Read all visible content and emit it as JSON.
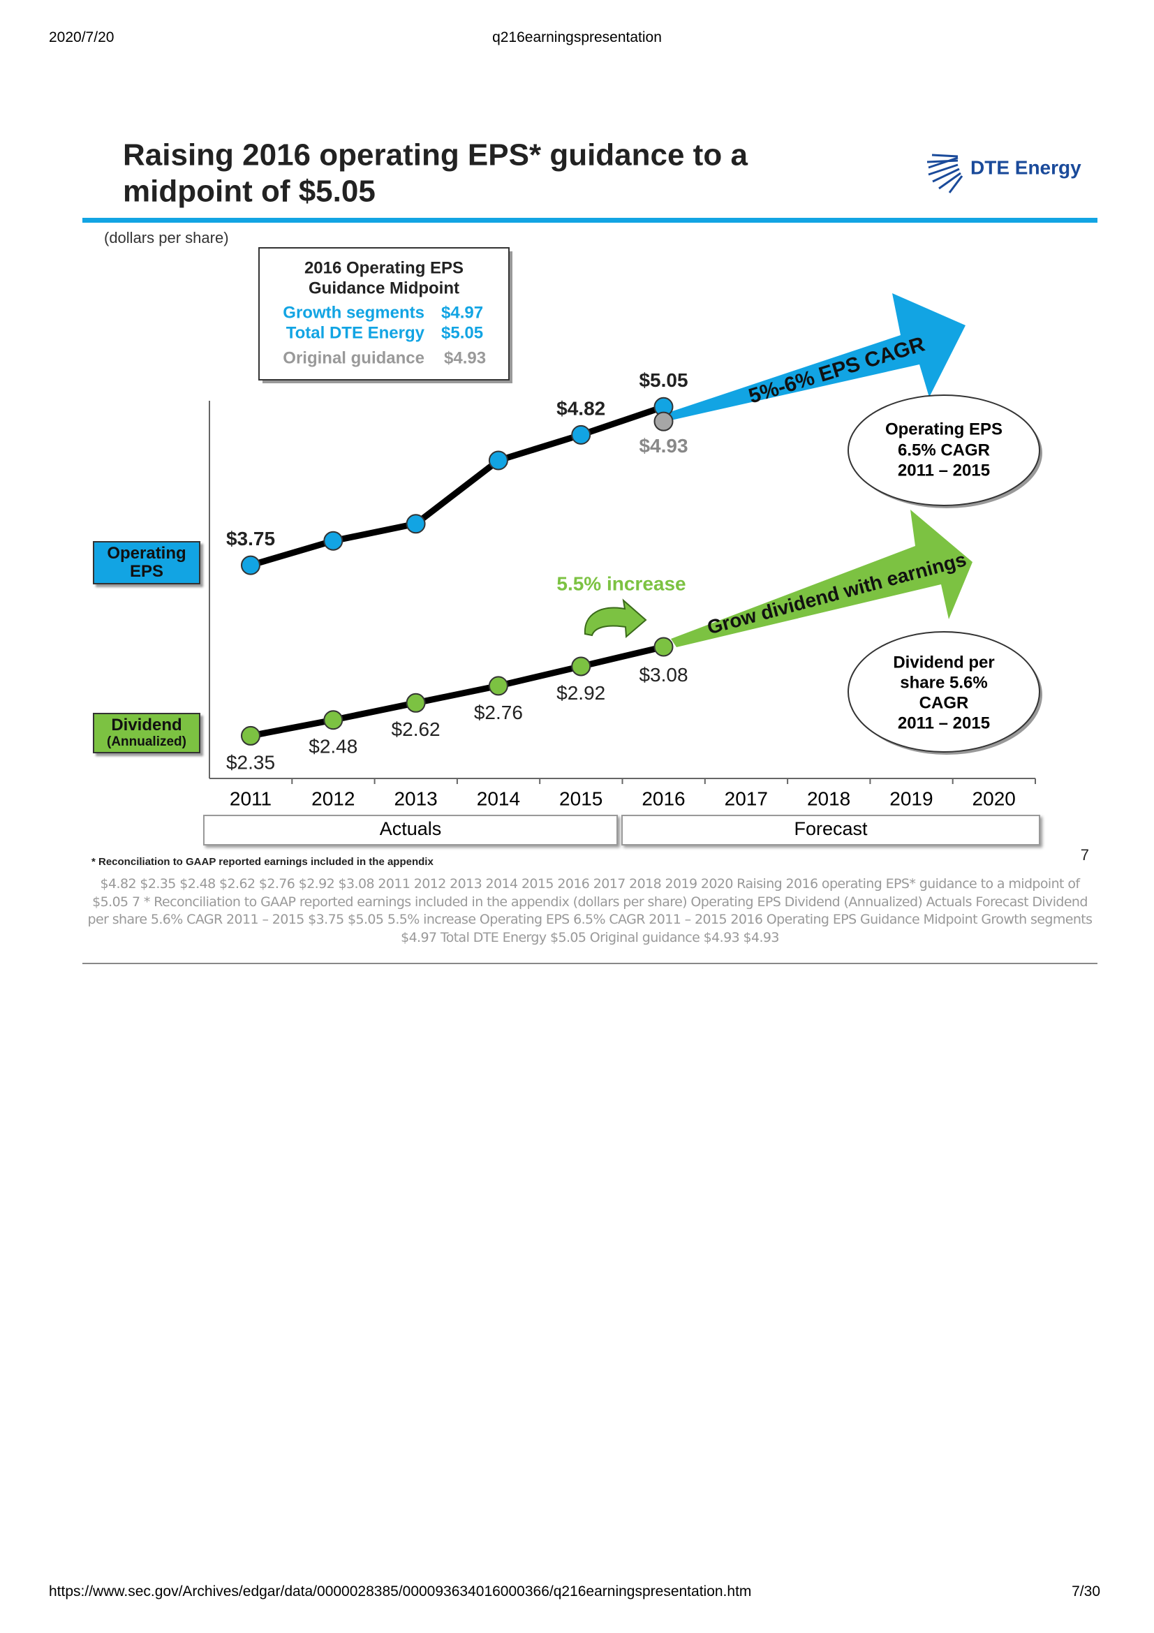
{
  "header": {
    "date": "2020/7/20",
    "title": "q216earningspresentation"
  },
  "slide": {
    "title_lines": [
      "Raising 2016 operating EPS* guidance to a",
      "midpoint of $5.05"
    ],
    "logo": "DTE Energy",
    "units": "(dollars per share)",
    "guidance_box": {
      "title_lines": [
        "2016 Operating EPS",
        "Guidance Midpoint"
      ],
      "rows": [
        [
          "Growth segments",
          "$4.97"
        ],
        [
          "Total DTE Energy",
          "$5.05"
        ],
        [
          "Original guidance",
          "$4.93"
        ]
      ]
    },
    "footnote": "* Reconciliation to GAAP reported earnings included in the appendix",
    "page_number": "7"
  },
  "chart_data": {
    "type": "line",
    "categories": [
      "2011",
      "2012",
      "2013",
      "2014",
      "2015",
      "2016",
      "2017",
      "2018",
      "2019",
      "2020"
    ],
    "ylim": [
      2.0,
      5.1
    ],
    "line_color": "#000000",
    "series": [
      {
        "name": "Operating EPS",
        "color": "#12a4e3",
        "values": [
          3.75,
          3.95,
          4.09,
          4.61,
          4.82,
          5.05,
          null,
          null,
          null,
          null
        ],
        "value_labels": [
          "$3.75",
          null,
          null,
          null,
          "$4.82",
          "$5.05",
          null,
          null,
          null,
          null
        ]
      },
      {
        "name": "Dividend",
        "name_note": "(Annualized)",
        "color": "#7cc242",
        "values": [
          2.35,
          2.48,
          2.62,
          2.76,
          2.92,
          3.08,
          null,
          null,
          null,
          null
        ],
        "value_labels": [
          "$2.35",
          "$2.48",
          "$2.62",
          "$2.76",
          "$2.92",
          "$3.08",
          null,
          null,
          null,
          null
        ]
      },
      {
        "name": "Original guidance",
        "color": "#a6a6a6",
        "values": [
          null,
          null,
          null,
          null,
          null,
          4.93,
          null,
          null,
          null,
          null
        ],
        "value_labels": [
          null,
          null,
          null,
          null,
          null,
          "$4.93",
          null,
          null,
          null,
          null
        ]
      }
    ],
    "periods": [
      "Actuals",
      "Forecast"
    ],
    "eps_arrow": "5%-6% EPS CAGR",
    "dividend_arrow": "Grow dividend with earnings",
    "increase": "5.5% increase",
    "eps_ellipse": [
      "Operating EPS",
      "6.5% CAGR",
      "2011 – 2015"
    ],
    "dividend_ellipse": [
      "Dividend per",
      "share 5.6%",
      "CAGR",
      "2011 – 2015"
    ]
  },
  "extracted_text": "$4.82  $2.35  $2.48  $2.62  $2.76  $2.92  $3.08  2011 2012 2013 2014 2015 2016 2017 2018 2019 2020 Raising 2016 operating EPS* guidance to a  midpoint of $5.05 7 * Reconciliation to GAAP reported earnings included in the appendix  (dollars per share)  Operating  EPS  Dividend  (Annualized)  Actuals Forecast  Dividend per share 5.6%  CAGR  2011 – 2015  $3.75  $5.05  5.5% increase  Operating EPS  6.5% CAGR  2011 – 2015  2016 Operating EPS  Guidance Midpoint  Growth segments  $4.97  Total DTE Energy $5.05   Original guidance $4.93  $4.93",
  "footer": {
    "url": "https://www.sec.gov/Archives/edgar/data/0000028385/000093634016000366/q216earningspresentation.htm",
    "page": "7/30"
  }
}
